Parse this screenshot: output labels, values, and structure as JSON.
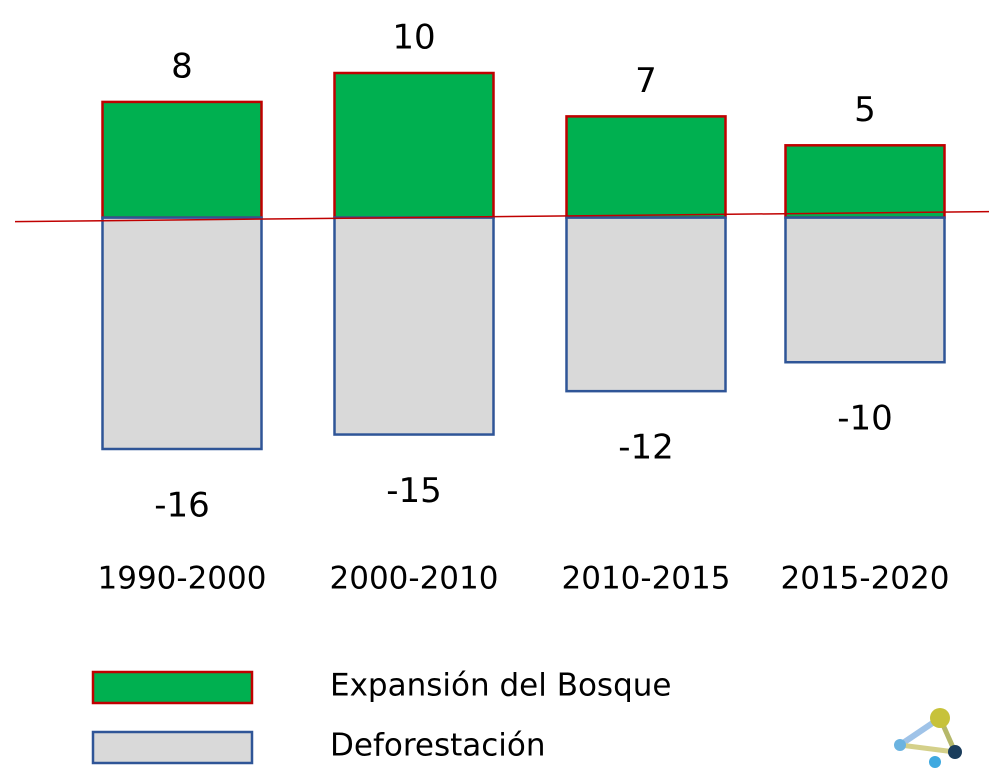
{
  "chart_data": {
    "type": "bar",
    "categories": [
      "1990-2000",
      "2000-2010",
      "2010-2015",
      "2015-2020"
    ],
    "series": [
      {
        "name": "Expansión del Bosque",
        "color": "#00b050",
        "edgecolor": "#c00000",
        "values": [
          8,
          10,
          7,
          5
        ]
      },
      {
        "name": "Deforestación",
        "color": "#d9d9d9",
        "edgecolor": "#2f5597",
        "values": [
          -16,
          -15,
          -12,
          -10
        ]
      }
    ]
  }
}
